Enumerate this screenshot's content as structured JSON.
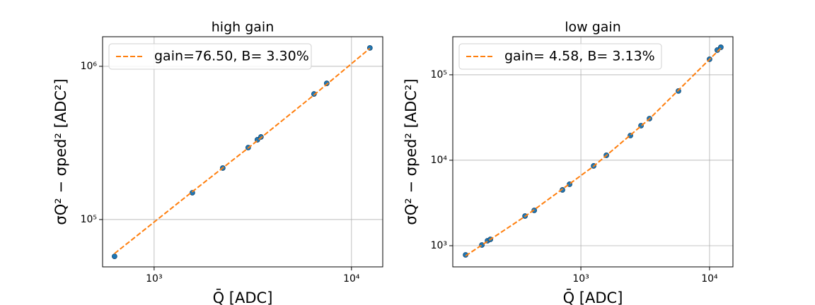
{
  "chart_data": [
    {
      "type": "scatter",
      "title": "high gain",
      "xlabel": "Q̄ [ADC]",
      "ylabel": "σQ² − σped² [ADC²]",
      "xscale": "log",
      "yscale": "log",
      "grid": true,
      "legend": "upper left",
      "xlim": [
        548,
        14400
      ],
      "ylim": [
        49100,
        1560000
      ],
      "xticks": [
        {
          "value": 1000,
          "label": "10³"
        },
        {
          "value": 10000,
          "label": "10⁴"
        }
      ],
      "yticks": [
        {
          "value": 100000,
          "label": "10⁵"
        },
        {
          "value": 1000000,
          "label": "10⁶"
        }
      ],
      "series": [
        {
          "color": "#1f77b4",
          "x": [
            630,
            1562,
            2227,
            2997,
            3336,
            3477,
            6457,
            7491,
            12394
          ],
          "values": [
            57500,
            149600,
            216800,
            295000,
            331700,
            346000,
            660000,
            774000,
            1318000
          ]
        },
        {
          "name": "gain=76.50, B= 3.30%",
          "color": "#ff7f0e",
          "line": "dashed",
          "x": [
            630,
            1562,
            2997,
            6457,
            12394
          ],
          "values": [
            60000,
            152000,
            293000,
            650000,
            1310000
          ]
        }
      ]
    },
    {
      "type": "scatter",
      "title": "low gain",
      "xlabel": "Q̄ [ADC]",
      "ylabel": "σQ² − σped² [ADC²]",
      "xscale": "log",
      "yscale": "log",
      "grid": true,
      "legend": "upper left",
      "xlim": [
        101,
        15200
      ],
      "ylim": [
        565,
        279000
      ],
      "xticks": [
        {
          "value": 1000,
          "label": "10³"
        },
        {
          "value": 10000,
          "label": "10⁴"
        }
      ],
      "yticks": [
        {
          "value": 1000,
          "label": "10³"
        },
        {
          "value": 10000,
          "label": "10⁴"
        },
        {
          "value": 100000,
          "label": "10⁵"
        }
      ],
      "series": [
        {
          "color": "#1f77b4",
          "x": [
            127,
            170,
            188,
            198,
            368,
            434,
            719,
            817,
            1256,
            1578,
            2425,
            2933,
            3413,
            5733,
            10000,
            11490,
            12240
          ],
          "values": [
            781,
            1019,
            1142,
            1187,
            2223,
            2589,
            4498,
            5240,
            8590,
            11430,
            19460,
            25400,
            30700,
            64600,
            152000,
            194600,
            210000
          ]
        },
        {
          "name": "gain= 4.58, B= 3.13%",
          "color": "#ff7f0e",
          "line": "dashed",
          "x": [
            127,
            368,
            1256,
            3413,
            12240
          ],
          "values": [
            760,
            2200,
            8500,
            30500,
            205000
          ]
        }
      ]
    }
  ]
}
